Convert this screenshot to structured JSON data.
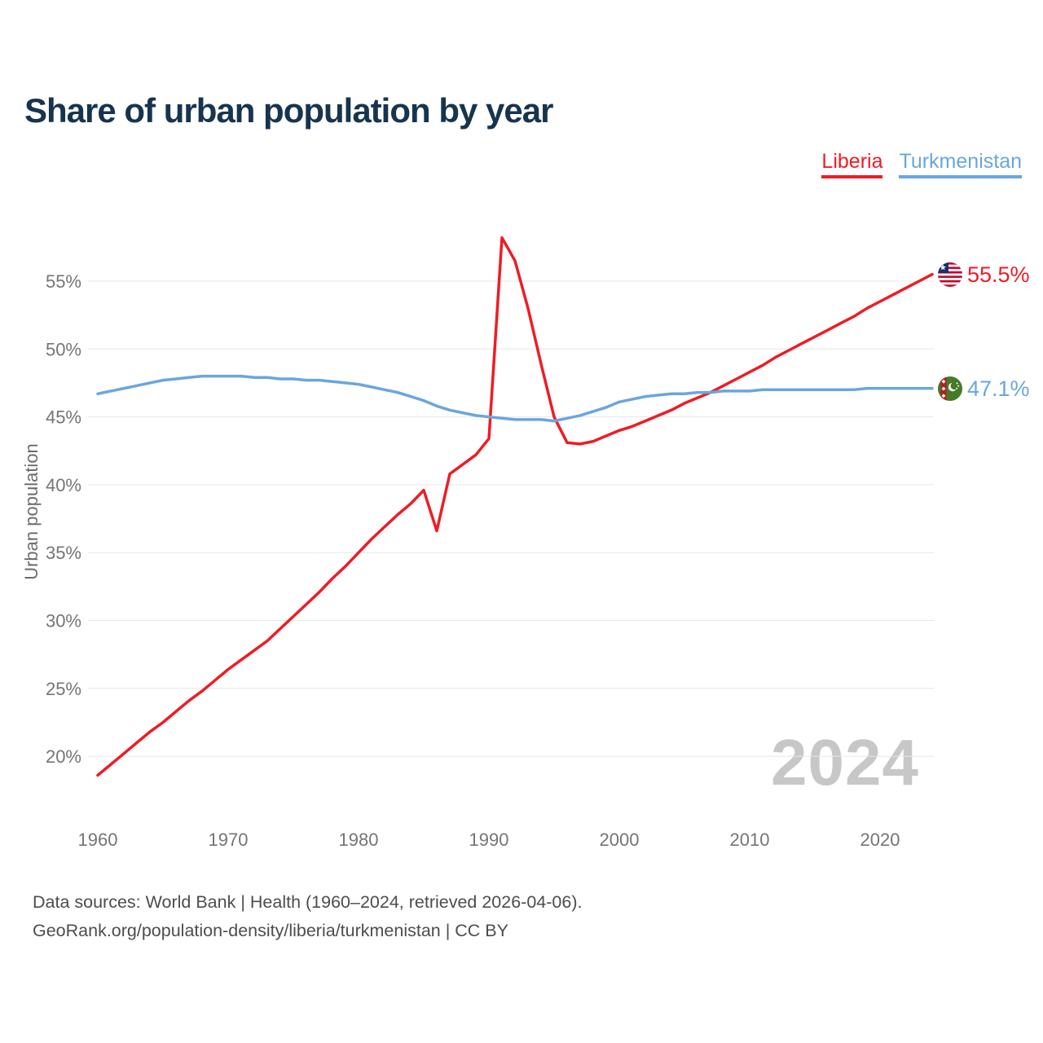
{
  "title": "Share of urban population by year",
  "legend": {
    "liberia": "Liberia",
    "turkmenistan": "Turkmenistan"
  },
  "end_labels": {
    "liberia": "55.5%",
    "turkmenistan": "47.1%"
  },
  "watermark": "2024",
  "footer": {
    "line1": "Data sources: World Bank | Health (1960–2024, retrieved 2026-04-06).",
    "line2": "GeoRank.org/population-density/liberia/turkmenistan | CC BY"
  },
  "icons": {
    "liberia": "liberia-flag-icon",
    "turkmenistan": "turkmenistan-flag-icon"
  },
  "colors": {
    "liberia_red": "#ee1c25",
    "turkmenistan_blue": "#6aa6de",
    "title_navy": "#17344f",
    "axis_gray": "#757575",
    "watermark_gray": "#c7c7c7",
    "gridline_gray": "#e7e7e7"
  },
  "chart_data": {
    "type": "line",
    "title": "Share of urban population by year",
    "xlabel": "",
    "ylabel": "Urban population",
    "grid": "horizontal",
    "legend_position": "top-right",
    "xlim": [
      1960,
      2024
    ],
    "ylim": [
      15,
      59
    ],
    "xticks": [
      1960,
      1970,
      1980,
      1990,
      2000,
      2010,
      2020
    ],
    "yticks": [
      20,
      25,
      30,
      35,
      40,
      45,
      50,
      55
    ],
    "ytick_labels": [
      "20%",
      "25%",
      "30%",
      "35%",
      "40%",
      "45%",
      "50%",
      "55%"
    ],
    "years": [
      1960,
      1961,
      1962,
      1963,
      1964,
      1965,
      1966,
      1967,
      1968,
      1969,
      1970,
      1971,
      1972,
      1973,
      1974,
      1975,
      1976,
      1977,
      1978,
      1979,
      1980,
      1981,
      1982,
      1983,
      1984,
      1985,
      1986,
      1987,
      1988,
      1989,
      1990,
      1991,
      1992,
      1993,
      1994,
      1995,
      1996,
      1997,
      1998,
      1999,
      2000,
      2001,
      2002,
      2003,
      2004,
      2005,
      2006,
      2007,
      2008,
      2009,
      2010,
      2011,
      2012,
      2013,
      2014,
      2015,
      2016,
      2017,
      2018,
      2019,
      2020,
      2021,
      2022,
      2023,
      2024
    ],
    "series": [
      {
        "name": "Liberia",
        "color": "#ee1c25",
        "end_label": "55.5%",
        "values": [
          18.6,
          19.4,
          20.2,
          21.0,
          21.8,
          22.5,
          23.3,
          24.1,
          24.8,
          25.6,
          26.4,
          27.1,
          27.8,
          28.5,
          29.4,
          30.3,
          31.2,
          32.1,
          33.1,
          34.0,
          35.0,
          36.0,
          36.9,
          37.8,
          38.6,
          39.6,
          36.6,
          40.8,
          41.5,
          42.2,
          43.4,
          58.2,
          56.5,
          53.0,
          48.9,
          45.0,
          43.1,
          43.0,
          43.2,
          43.6,
          44.0,
          44.3,
          44.7,
          45.1,
          45.5,
          46.0,
          46.4,
          46.8,
          47.3,
          47.8,
          48.3,
          48.8,
          49.4,
          49.9,
          50.4,
          50.9,
          51.4,
          51.9,
          52.4,
          53.0,
          53.5,
          54.0,
          54.5,
          55.0,
          55.5
        ]
      },
      {
        "name": "Turkmenistan",
        "color": "#6aa6de",
        "end_label": "47.1%",
        "values": [
          46.7,
          46.9,
          47.1,
          47.3,
          47.5,
          47.7,
          47.8,
          47.9,
          48.0,
          48.0,
          48.0,
          48.0,
          47.9,
          47.9,
          47.8,
          47.8,
          47.7,
          47.7,
          47.6,
          47.5,
          47.4,
          47.2,
          47.0,
          46.8,
          46.5,
          46.2,
          45.8,
          45.5,
          45.3,
          45.1,
          45.0,
          44.9,
          44.8,
          44.8,
          44.8,
          44.7,
          44.9,
          45.1,
          45.4,
          45.7,
          46.1,
          46.3,
          46.5,
          46.6,
          46.7,
          46.7,
          46.8,
          46.8,
          46.9,
          46.9,
          46.9,
          47.0,
          47.0,
          47.0,
          47.0,
          47.0,
          47.0,
          47.0,
          47.0,
          47.1,
          47.1,
          47.1,
          47.1,
          47.1,
          47.1
        ]
      }
    ]
  }
}
